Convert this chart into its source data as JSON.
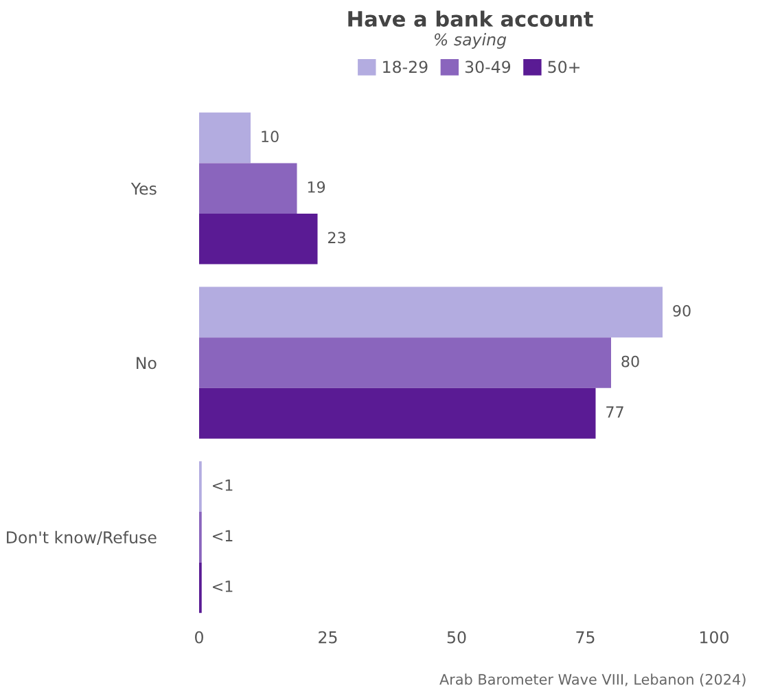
{
  "chart_data": {
    "type": "bar",
    "orientation": "horizontal",
    "title": "Have a bank account",
    "subtitle": "% saying",
    "categories": [
      "Yes",
      "No",
      "Don't know/Refuse"
    ],
    "series": [
      {
        "name": "18-29",
        "color": "#b3ace0",
        "values": [
          10,
          90,
          0.5
        ],
        "value_labels": [
          "10",
          "90",
          "<1"
        ]
      },
      {
        "name": "30-49",
        "color": "#8a65bd",
        "values": [
          19,
          80,
          0.5
        ],
        "value_labels": [
          "19",
          "80",
          "<1"
        ]
      },
      {
        "name": "50+",
        "color": "#5a1b94",
        "values": [
          23,
          77,
          0.5
        ],
        "value_labels": [
          "23",
          "77",
          "<1"
        ]
      }
    ],
    "xlim": [
      0,
      100
    ],
    "xticks": [
      0,
      25,
      50,
      75,
      100
    ],
    "grid": false,
    "legend": "top",
    "annotations": [
      "Arab Barometer Wave VIII, Lebanon (2024)"
    ]
  }
}
